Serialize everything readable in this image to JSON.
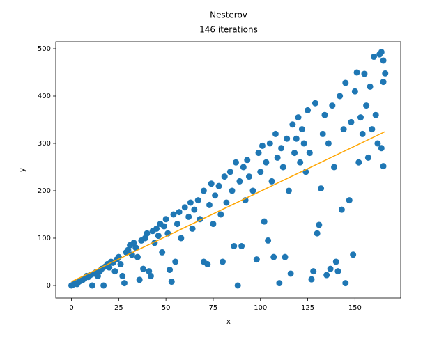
{
  "chart_data": {
    "type": "scatter",
    "title": "Nesterov",
    "subtitle": "146 iterations",
    "x_label": "x",
    "y_label": "y",
    "xlim": [
      -8.3,
      174.2
    ],
    "ylim": [
      -26.5,
      514.7
    ],
    "xticks": [
      0,
      25,
      50,
      75,
      100,
      125,
      150
    ],
    "yticks": [
      0,
      100,
      200,
      300,
      400,
      500
    ],
    "grid": false,
    "points": {
      "color": "#1f77b4",
      "x": [
        0,
        1,
        2,
        3,
        4,
        5,
        6,
        7,
        8,
        9,
        10,
        11,
        12,
        13,
        14,
        15,
        16,
        17,
        18,
        19,
        20,
        21,
        22,
        23,
        24,
        25,
        26,
        27,
        28,
        29,
        30,
        31,
        32,
        33,
        34,
        35,
        36,
        37,
        38,
        39,
        40,
        41,
        42,
        43,
        44,
        45,
        46,
        47,
        48,
        49,
        50,
        51,
        52,
        53,
        54,
        55,
        56,
        57,
        58,
        60,
        62,
        63,
        64,
        65,
        67,
        68,
        70,
        70,
        72,
        73,
        74,
        75,
        76,
        78,
        79,
        80,
        81,
        82,
        84,
        85,
        86,
        87,
        88,
        89,
        90,
        91,
        92,
        93,
        94,
        96,
        98,
        99,
        100,
        101,
        102,
        103,
        104,
        105,
        106,
        107,
        108,
        109,
        110,
        111,
        112,
        113,
        114,
        115,
        116,
        117,
        118,
        119,
        120,
        121,
        122,
        123,
        124,
        125,
        126,
        127,
        128,
        129,
        130,
        131,
        132,
        133,
        134,
        135,
        136,
        137,
        138,
        139,
        140,
        141,
        142,
        143,
        144,
        145,
        145,
        147,
        148,
        149,
        150,
        151,
        152,
        153,
        154,
        155,
        156,
        157,
        158,
        159,
        160,
        161,
        162,
        163,
        164,
        165,
        165,
        166,
        164,
        165
      ],
      "values": [
        0,
        2,
        5,
        3,
        8,
        10,
        12,
        15,
        20,
        18,
        22,
        0,
        25,
        28,
        20,
        30,
        35,
        0,
        40,
        45,
        38,
        50,
        48,
        30,
        55,
        60,
        45,
        20,
        5,
        70,
        75,
        85,
        65,
        90,
        80,
        60,
        12,
        95,
        35,
        100,
        110,
        30,
        20,
        115,
        90,
        120,
        105,
        130,
        70,
        125,
        140,
        110,
        33,
        8,
        150,
        50,
        130,
        155,
        100,
        165,
        145,
        175,
        120,
        160,
        180,
        140,
        50,
        200,
        45,
        170,
        215,
        130,
        190,
        210,
        150,
        50,
        230,
        175,
        240,
        200,
        83,
        260,
        0,
        220,
        83,
        250,
        180,
        265,
        230,
        200,
        55,
        280,
        240,
        295,
        135,
        260,
        95,
        300,
        220,
        60,
        320,
        270,
        5,
        290,
        250,
        60,
        310,
        200,
        25,
        340,
        280,
        310,
        355,
        260,
        330,
        300,
        240,
        370,
        280,
        13,
        30,
        385,
        110,
        128,
        205,
        320,
        360,
        22,
        300,
        35,
        380,
        250,
        50,
        30,
        400,
        160,
        330,
        5,
        428,
        180,
        345,
        65,
        410,
        450,
        260,
        355,
        320,
        447,
        380,
        270,
        420,
        330,
        483,
        360,
        300,
        488,
        493,
        475,
        430,
        448,
        290,
        252
      ]
    },
    "fit": {
      "type": "line",
      "color": "#ffa500",
      "x": [
        0,
        166
      ],
      "values": [
        8,
        325
      ]
    }
  }
}
